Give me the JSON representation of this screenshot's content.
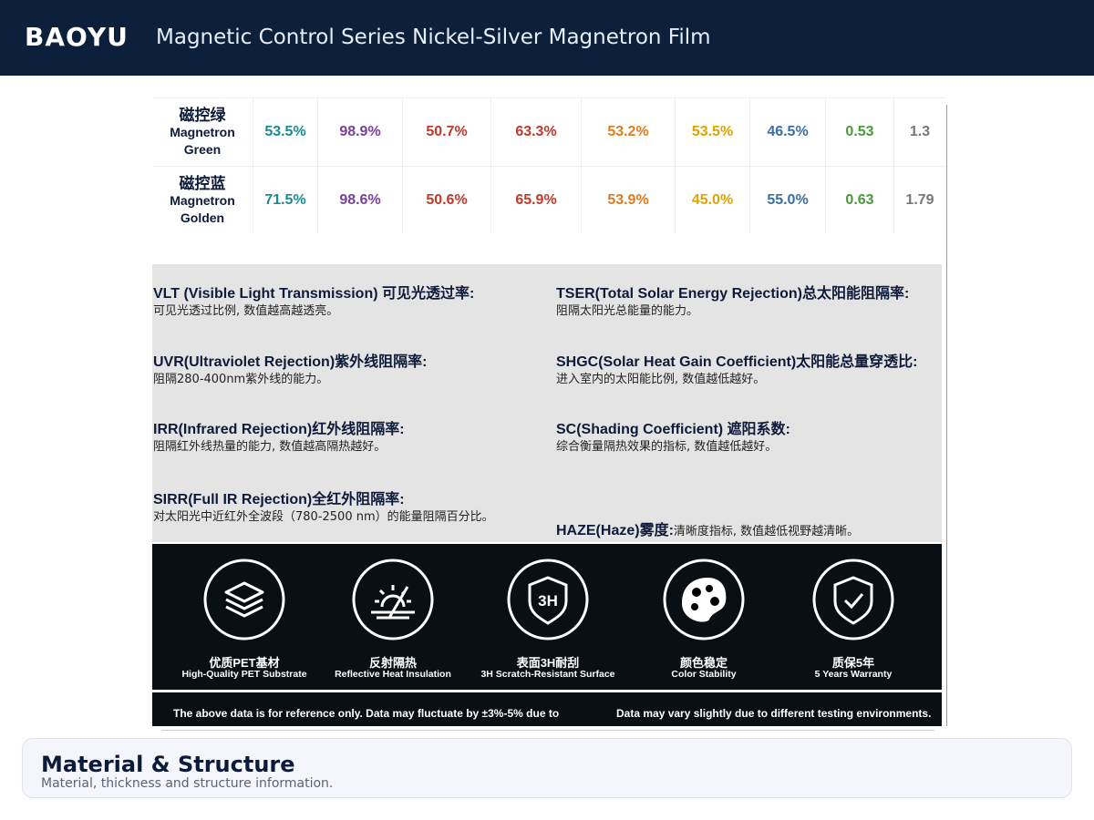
{
  "header": {
    "brand": "BAOYU",
    "title": "Magnetic Control Series Nickel-Silver Magnetron Film"
  },
  "table": {
    "rows": [
      {
        "name_cn": "磁控绿",
        "name_en": [
          "Magnetron",
          "Green"
        ],
        "values": [
          "53.5%",
          "98.9%",
          "50.7%",
          "63.3%",
          "53.2%",
          "53.5%",
          "46.5%",
          "0.53",
          "1.3"
        ]
      },
      {
        "name_cn": "磁控蓝",
        "name_en": [
          "Magnetron",
          "Golden"
        ],
        "values": [
          "71.5%",
          "98.6%",
          "50.6%",
          "65.9%",
          "53.9%",
          "45.0%",
          "55.0%",
          "0.63",
          "1.79"
        ]
      }
    ],
    "colors": [
      "#1b8a8f",
      "#7a3f9a",
      "#c0392b",
      "#c0392b",
      "#e07b22",
      "#e0a400",
      "#3a6ea5",
      "#4a9a3a",
      "#777777"
    ]
  },
  "glossary": [
    {
      "term": "VLT (Visible Light Transmission) 可见光透过率:",
      "desc": "可见光透过比例, 数值越高越透亮。"
    },
    {
      "term": "TSER(Total Solar Energy Rejection)总太阳能阻隔率:",
      "desc": "阻隔太阳光总能量的能力。"
    },
    {
      "term": "UVR(Ultraviolet Rejection)紫外线阻隔率:",
      "desc": "阻隔280-400nm紫外线的能力。"
    },
    {
      "term": "SHGC(Solar Heat Gain Coefficient)太阳能总量穿透比:",
      "desc": "进入室内的太阳能比例, 数值越低越好。"
    },
    {
      "term": "IRR(Infrared Rejection)红外线阻隔率:",
      "desc": "阻隔红外线热量的能力, 数值越高隔热越好。"
    },
    {
      "term": "SC(Shading Coefficient) 遮阳系数:",
      "desc": "综合衡量隔热效果的指标, 数值越低越好。"
    },
    {
      "term": "SIRR(Full IR Rejection)全红外阻隔率:",
      "desc": "对太阳光中近红外全波段（780-2500 nm）的能量阻隔百分比。"
    },
    {
      "term": "HAZE(Haze)雾度:",
      "desc": "清晰度指标, 数值越低视野越清晰。"
    }
  ],
  "features": [
    {
      "cn": "优质PET基材",
      "en": "High-Quality PET Substrate"
    },
    {
      "cn": "反射隔热",
      "en": "Reflective Heat Insulation"
    },
    {
      "cn": "表面3H耐刮",
      "en": "3H Scratch-Resistant Surface",
      "icon_text": "3H"
    },
    {
      "cn": "颜色稳定",
      "en": "Color Stability"
    },
    {
      "cn": "质保5年",
      "en": "5 Years Warranty"
    }
  ],
  "disclaimer": [
    "The above data is for reference only. Data may fluctuate by ±3%-5% due to",
    "Data may vary slightly due to different testing environments."
  ],
  "section": {
    "title": "Material & Structure",
    "subtitle": "Material, thickness and structure information."
  }
}
